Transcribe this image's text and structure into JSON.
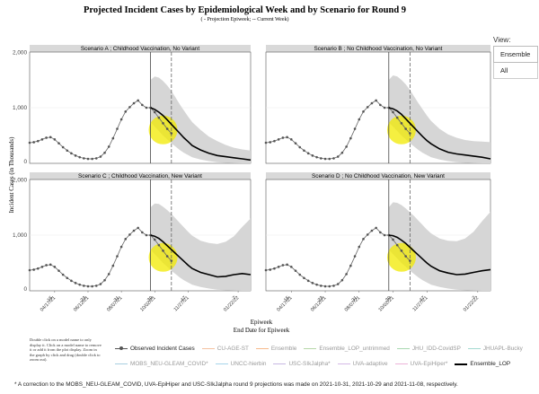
{
  "title": "Projected Incident Cases by Epidemiological Week and by Scenario for Round 9",
  "subtitle": "( - Projection Epiweek; -- Current Week)",
  "view": {
    "label": "View:",
    "options": [
      "Ensemble",
      "All"
    ],
    "selected": "Ensemble"
  },
  "legend_help": "Double click on a model name to only display it. Click on a model name to remove it or add it from the plot display. Zoom in the graph by click and drag (double click to zoom out).",
  "legend": {
    "row1": [
      {
        "name": "Observed Incident Cases",
        "color": "#555555",
        "active": true,
        "marker": true
      },
      {
        "name": "CU-AGE-ST",
        "color": "#f4c2a0",
        "active": false
      },
      {
        "name": "Ensemble",
        "color": "#f7b98b",
        "active": false
      },
      {
        "name": "Ensemble_LOP_untrimmed",
        "color": "#b6d7a8",
        "active": false
      },
      {
        "name": "JHU_IDD-CovidSP",
        "color": "#a8d8b0",
        "active": false
      },
      {
        "name": "JHUAPL-Bucky",
        "color": "#a3d9d0",
        "active": false
      }
    ],
    "row2": [
      {
        "name": "MOBS_NEU-GLEAM_COVID*",
        "color": "#a8cfe0",
        "active": false
      },
      {
        "name": "UNCC-hierbin",
        "color": "#a6d4ea",
        "active": false
      },
      {
        "name": "USC-SIkJalpha*",
        "color": "#c7b7e2",
        "active": false
      },
      {
        "name": "UVA-adaptive",
        "color": "#d5b8e6",
        "active": false
      },
      {
        "name": "UVA-EpiHiper*",
        "color": "#ecb3d8",
        "active": false
      },
      {
        "name": "Ensemble_LOP",
        "color": "#000000",
        "active": true
      }
    ]
  },
  "footnote": "* A correction to the MOBS_NEU-GLEAM_COVID, UVA-EpiHiper and USC-SIkJalpha round 9 projections was made on 2021-10-31, 2021-10-29 and 2021-11-08, respectively.",
  "chart_data": {
    "type": "line",
    "ylabel": "Incident Cases (in Thousands)",
    "xlabel": "Epiweek",
    "xlabel2": "End Date for Epiweek",
    "ylim": [
      0,
      2000
    ],
    "yticks": [
      "0",
      "1,000",
      "2,000"
    ],
    "xticks": [
      {
        "top": "15",
        "bottom": "04/17/21"
      },
      {
        "top": "23",
        "bottom": "06/12/21"
      },
      {
        "top": "31",
        "bottom": "08/07/21"
      },
      {
        "top": "39",
        "bottom": "10/02/21"
      },
      {
        "top": "47",
        "bottom": "11/27/21"
      },
      {
        "top": "7",
        "bottom": "01/22/22"
      }
    ],
    "week_range": [
      9,
      62
    ],
    "projection_start_week": 38,
    "current_week": 43,
    "observed": {
      "weeks": [
        9,
        10,
        11,
        12,
        13,
        14,
        15,
        16,
        17,
        18,
        19,
        20,
        21,
        22,
        23,
        24,
        25,
        26,
        27,
        28,
        29,
        30,
        31,
        32,
        33,
        34,
        35,
        36,
        37,
        38
      ],
      "values": [
        370,
        380,
        400,
        430,
        460,
        470,
        430,
        360,
        290,
        230,
        180,
        140,
        110,
        90,
        80,
        80,
        90,
        120,
        190,
        300,
        450,
        620,
        790,
        930,
        1010,
        1080,
        1130,
        1050,
        1000,
        1000
      ]
    },
    "observed_recent": {
      "weeks": [
        38,
        39,
        40,
        41,
        42,
        43
      ],
      "values": [
        1000,
        920,
        820,
        720,
        620,
        540
      ]
    },
    "panels": [
      {
        "name": "Scenario A ; Childhood Vaccination, No Variant",
        "ensemble_lop": {
          "weeks": [
            38,
            39,
            40,
            41,
            42,
            43,
            44,
            45,
            46,
            47,
            48,
            50,
            52,
            54,
            56,
            58,
            60,
            62
          ],
          "values": [
            1000,
            970,
            920,
            860,
            780,
            700,
            620,
            540,
            460,
            390,
            320,
            240,
            180,
            140,
            120,
            100,
            80,
            60
          ]
        },
        "band_upper": [
          1500,
          1560,
          1540,
          1480,
          1400,
          1300,
          1180,
          1060,
          950,
          840,
          740,
          600,
          480,
          400,
          330,
          280,
          250,
          230
        ],
        "band_lower": [
          740,
          660,
          580,
          500,
          430,
          360,
          300,
          240,
          190,
          150,
          110,
          70,
          40,
          20,
          10,
          5,
          0,
          0
        ]
      },
      {
        "name": "Scenario B ; No Childhood Vaccination, No Variant",
        "ensemble_lop": {
          "weeks": [
            38,
            39,
            40,
            41,
            42,
            43,
            44,
            45,
            46,
            47,
            48,
            50,
            52,
            54,
            56,
            58,
            60,
            62
          ],
          "values": [
            1000,
            980,
            940,
            880,
            800,
            720,
            640,
            560,
            480,
            410,
            350,
            260,
            200,
            170,
            150,
            130,
            110,
            80
          ]
        },
        "band_upper": [
          1500,
          1580,
          1560,
          1500,
          1420,
          1320,
          1200,
          1080,
          970,
          860,
          760,
          620,
          520,
          460,
          420,
          400,
          390,
          380
        ],
        "band_lower": [
          740,
          660,
          580,
          500,
          430,
          360,
          300,
          240,
          190,
          150,
          110,
          70,
          40,
          20,
          10,
          5,
          0,
          0
        ]
      },
      {
        "name": "Scenario C ; Childhood Vaccination, New Variant",
        "ensemble_lop": {
          "weeks": [
            38,
            39,
            40,
            41,
            42,
            43,
            44,
            45,
            46,
            47,
            48,
            50,
            52,
            54,
            56,
            58,
            60,
            62
          ],
          "values": [
            1000,
            980,
            940,
            880,
            810,
            740,
            670,
            600,
            530,
            460,
            400,
            330,
            290,
            250,
            260,
            290,
            310,
            290
          ]
        },
        "band_upper": [
          1500,
          1570,
          1560,
          1510,
          1450,
          1380,
          1300,
          1220,
          1140,
          1060,
          990,
          900,
          860,
          840,
          880,
          980,
          1150,
          1300
        ],
        "band_lower": [
          740,
          660,
          580,
          500,
          430,
          360,
          300,
          240,
          190,
          150,
          110,
          70,
          40,
          20,
          10,
          5,
          0,
          0
        ]
      },
      {
        "name": "Scenario D ; No Childhood Vaccination, New Variant",
        "ensemble_lop": {
          "weeks": [
            38,
            39,
            40,
            41,
            42,
            43,
            44,
            45,
            46,
            47,
            48,
            50,
            52,
            54,
            56,
            58,
            60,
            62
          ],
          "values": [
            1000,
            990,
            960,
            910,
            850,
            780,
            710,
            640,
            570,
            500,
            440,
            360,
            320,
            290,
            300,
            330,
            360,
            380
          ]
        },
        "band_upper": [
          1500,
          1590,
          1580,
          1540,
          1480,
          1410,
          1340,
          1260,
          1180,
          1100,
          1030,
          940,
          900,
          890,
          940,
          1060,
          1250,
          1420
        ],
        "band_lower": [
          740,
          660,
          580,
          500,
          430,
          360,
          300,
          240,
          190,
          150,
          110,
          70,
          40,
          20,
          10,
          5,
          0,
          0
        ]
      }
    ],
    "highlight_color": "#f2ea00"
  }
}
